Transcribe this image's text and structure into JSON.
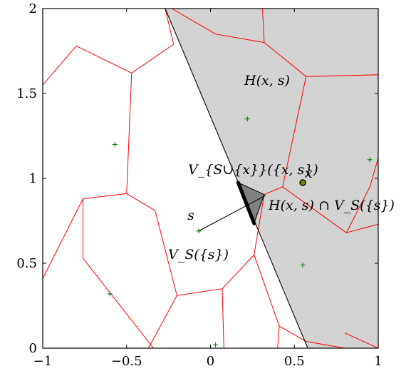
{
  "axes": {
    "xlim": [
      -1,
      1
    ],
    "ylim": [
      0,
      2
    ],
    "xticks": [
      {
        "v": -1,
        "label": "−1"
      },
      {
        "v": -0.5,
        "label": "−0.5"
      },
      {
        "v": 0,
        "label": "0"
      },
      {
        "v": 0.5,
        "label": "0.5"
      },
      {
        "v": 1,
        "label": "1"
      }
    ],
    "yticks": [
      {
        "v": 0,
        "label": "0"
      },
      {
        "v": 0.5,
        "label": "0.5"
      },
      {
        "v": 1,
        "label": "1"
      },
      {
        "v": 1.5,
        "label": "1.5"
      },
      {
        "v": 2,
        "label": "2"
      }
    ]
  },
  "colors": {
    "halfplane_fill": "#d3d3d3",
    "voronoi_edge": "#ff0000",
    "site_marker": "#008000",
    "highlight_cell": "#808080",
    "point_x_fill": "#808000"
  },
  "halfplane_line": [
    [
      -0.27,
      2.0
    ],
    [
      0.58,
      0.0
    ]
  ],
  "highlight_cell_polygon": [
    [
      0.165,
      0.975
    ],
    [
      0.32,
      0.905
    ],
    [
      0.26,
      0.735
    ]
  ],
  "thick_segment": [
    [
      0.165,
      0.975
    ],
    [
      0.26,
      0.735
    ]
  ],
  "pointer_line": [
    [
      -0.07,
      0.69
    ],
    [
      0.33,
      0.9
    ]
  ],
  "point_x": [
    0.55,
    0.975
  ],
  "sites": [
    [
      -0.57,
      1.2
    ],
    [
      0.22,
      1.35
    ],
    [
      0.95,
      1.11
    ],
    [
      -0.07,
      0.69
    ],
    [
      0.55,
      0.49
    ],
    [
      -0.6,
      0.32
    ],
    [
      0.03,
      0.02
    ]
  ],
  "voronoi_edges": [
    [
      [
        -1,
        1.55
      ],
      [
        -0.8,
        1.78
      ],
      [
        -0.47,
        1.62
      ],
      [
        -0.22,
        1.79
      ],
      [
        -0.27,
        2.0
      ]
    ],
    [
      [
        -0.47,
        1.62
      ],
      [
        -0.5,
        0.91
      ],
      [
        -0.76,
        0.88
      ],
      [
        -1,
        0.41
      ]
    ],
    [
      [
        -0.5,
        0.91
      ],
      [
        -0.33,
        0.81
      ],
      [
        -0.2,
        0.31
      ],
      [
        0.07,
        0.35
      ],
      [
        0.26,
        0.55
      ],
      [
        0.32,
        0.905
      ]
    ],
    [
      [
        -0.76,
        0.88
      ],
      [
        -0.76,
        0.53
      ],
      [
        -0.34,
        0.0
      ]
    ],
    [
      [
        -0.2,
        0.31
      ],
      [
        -0.37,
        0.0
      ]
    ],
    [
      [
        0.07,
        0.35
      ],
      [
        0.08,
        0.0
      ]
    ],
    [
      [
        0.26,
        0.55
      ],
      [
        0.41,
        0.13
      ],
      [
        0.57,
        0.04
      ],
      [
        0.8,
        0.0
      ]
    ],
    [
      [
        0.41,
        0.13
      ],
      [
        0.4,
        0.0
      ]
    ],
    [
      [
        0.32,
        0.905
      ],
      [
        0.43,
        0.95
      ],
      [
        0.81,
        0.68
      ],
      [
        0.95,
        0.95
      ],
      [
        1,
        1.12
      ]
    ],
    [
      [
        0.81,
        0.68
      ],
      [
        1,
        0.73
      ]
    ],
    [
      [
        0.43,
        0.95
      ],
      [
        0.57,
        1.6
      ],
      [
        1,
        1.61
      ]
    ],
    [
      [
        0.57,
        1.6
      ],
      [
        0.32,
        1.8
      ],
      [
        0.03,
        1.85
      ],
      [
        -0.23,
        2.0
      ]
    ],
    [
      [
        0.32,
        1.8
      ],
      [
        0.31,
        2.0
      ]
    ],
    [
      [
        0.8,
        0.09
      ],
      [
        1,
        0.0
      ]
    ]
  ],
  "labels": {
    "H": "H(x, s)",
    "V_union": "V_{S∪{x}}({x, s})",
    "x": "x",
    "H_cap": "H(x, s) ∩ V_S({s})",
    "s": "s",
    "VS": "V_S({s})"
  }
}
